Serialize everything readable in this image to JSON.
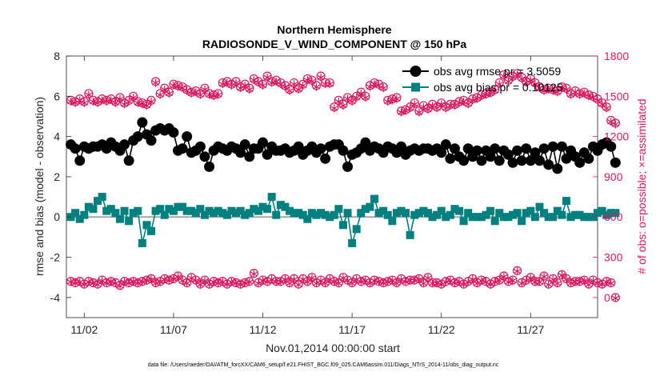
{
  "chart_data": {
    "type": "line",
    "title": "Northern Hemisphere",
    "subtitle": "RADIOSONDE_V_WIND_COMPONENT @ 150 hPa",
    "xlabel": "Nov.01,2014 00:00:00 start",
    "ylabel": "rmse and bias (model - observation)",
    "ylabel_right": "# of obs: o=possible; ×=assimilated",
    "x_tick_labels": [
      "11/02",
      "11/07",
      "11/12",
      "11/17",
      "11/22",
      "11/27"
    ],
    "x_tick_days": [
      1.5,
      6.5,
      11.5,
      16.5,
      21.5,
      26.5
    ],
    "xlim": [
      0.5,
      30.25
    ],
    "ylim": [
      -5,
      8
    ],
    "y_ticks": [
      -4,
      -2,
      0,
      2,
      4,
      6,
      8
    ],
    "ylim_right": [
      -150,
      1800
    ],
    "y_ticks_right": [
      0,
      300,
      600,
      900,
      1200,
      1500,
      1800
    ],
    "grid": false,
    "legend_position": "top-right",
    "footer": "data file: /Users/raeder/DAI/ATM_forcXX/CAM6_setup/f.e21.FHIST_BGC.f09_025.CAM6assim.011/Diags_NTrS_2014-11/obs_diag_output.nc",
    "colors": {
      "rmse": "#000000",
      "bias": "#00807f",
      "counts": "#d81b60",
      "zero_line": "#a6a6a6",
      "axes": "#262626"
    },
    "x_start_day": 0.75,
    "x_step_days": 0.25,
    "series": [
      {
        "name": "obs avg rmse pr = 3.5059",
        "axis": "left",
        "values": [
          3.6,
          3.4,
          2.8,
          3.5,
          3.4,
          3.5,
          3.5,
          3.6,
          3.4,
          3.7,
          3.5,
          3.3,
          3.6,
          2.8,
          3.8,
          4.0,
          4.7,
          4.1,
          3.8,
          4.3,
          4.4,
          4.3,
          4.4,
          4.2,
          3.3,
          3.4,
          4.0,
          3.2,
          3.3,
          3.5,
          3.0,
          2.5,
          3.3,
          3.5,
          3.4,
          3.3,
          3.5,
          3.4,
          3.2,
          3.6,
          3.0,
          3.4,
          3.4,
          3.7,
          3.1,
          3.5,
          3.3,
          3.3,
          3.4,
          3.2,
          3.3,
          3.5,
          3.1,
          3.3,
          3.5,
          3.2,
          3.4,
          2.9,
          3.5,
          3.6,
          3.6,
          3.3,
          2.5,
          3.1,
          3.2,
          3.4,
          3.7,
          3.3,
          3.5,
          3.4,
          3.2,
          3.5,
          3.4,
          3.2,
          3.5,
          3.1,
          3.3,
          3.4,
          3.3,
          3.4,
          3.4,
          3.3,
          3.4,
          3.2,
          3.6,
          2.9,
          3.4,
          3.0,
          2.8,
          3.4,
          3.0,
          3.3,
          2.8,
          3.3,
          3.0,
          3.4,
          2.8,
          3.3,
          3.1,
          2.7,
          3.3,
          2.8,
          3.4,
          2.8,
          3.2,
          2.8,
          3.4,
          2.6,
          3.5,
          2.4,
          3.5,
          2.9,
          3.3,
          3.0,
          2.7,
          3.2,
          2.9,
          3.5,
          3.3,
          3.6,
          3.7,
          3.5,
          2.7
        ],
        "markers": "filled-circle"
      },
      {
        "name": "obs avg bias pr = 0.10125",
        "axis": "left",
        "values": [
          0.0,
          0.2,
          -0.1,
          0.1,
          0.5,
          0.4,
          0.8,
          1.0,
          0.3,
          0.4,
          0.2,
          -0.1,
          0.3,
          -0.2,
          0.2,
          0.3,
          -1.3,
          -0.4,
          -0.7,
          0.3,
          0.4,
          0.1,
          0.4,
          0.3,
          0.5,
          0.5,
          0.3,
          0.3,
          0.2,
          0.4,
          0.1,
          0.3,
          0.2,
          0.3,
          0.2,
          0.1,
          0.3,
          0.2,
          0.3,
          0.1,
          0.2,
          0.4,
          0.3,
          0.5,
          0.4,
          1.0,
          0.1,
          0.6,
          0.5,
          0.3,
          0.2,
          0.2,
          0.1,
          -0.1,
          0.2,
          0.1,
          0.2,
          0.1,
          0.0,
          0.1,
          0.4,
          -0.4,
          0.2,
          -1.3,
          -0.6,
          0.2,
          0.4,
          0.5,
          0.9,
          0.2,
          0.3,
          0.1,
          -0.2,
          0.2,
          0.3,
          0.2,
          -0.9,
          0.1,
          0.2,
          0.3,
          0.2,
          0.0,
          0.1,
          0.3,
          0.0,
          0.1,
          0.4,
          0.3,
          -0.2,
          0.2,
          0.0,
          0.0,
          0.0,
          0.1,
          0.3,
          -0.2,
          0.2,
          0.0,
          0.0,
          0.1,
          0.2,
          -0.2,
          0.2,
          0.3,
          0.0,
          0.5,
          0.2,
          0.0,
          0.0,
          0.3,
          0.1,
          0.8,
          0.0,
          0.1,
          0.1,
          0.0,
          0.0,
          0.0,
          0.2,
          0.3,
          0.1,
          0.2,
          0.2
        ],
        "markers": "filled-square"
      },
      {
        "name": "possible",
        "axis": "right",
        "values": [
          1470,
          1460,
          1480,
          1460,
          1520,
          1470,
          1460,
          1480,
          1470,
          1480,
          1460,
          1490,
          1450,
          1470,
          1500,
          1460,
          1450,
          1440,
          1470,
          1610,
          1520,
          1560,
          1530,
          1590,
          1580,
          1570,
          1550,
          1530,
          1540,
          1520,
          1560,
          1520,
          1510,
          1520,
          1600,
          1610,
          1590,
          1610,
          1570,
          1590,
          1560,
          1630,
          1610,
          1590,
          1650,
          1610,
          1620,
          1600,
          1580,
          1550,
          1600,
          1560,
          1590,
          1630,
          1620,
          1580,
          1650,
          1600,
          1600,
          1420,
          1470,
          1440,
          1490,
          1470,
          1500,
          1530,
          1500,
          1580,
          1600,
          1590,
          1570,
          1470,
          1480,
          1490,
          1390,
          1400,
          1420,
          1450,
          1390,
          1430,
          1410,
          1440,
          1420,
          1450,
          1420,
          1440,
          1440,
          1460,
          1470,
          1450,
          1480,
          1490,
          1510,
          1520,
          1530,
          1550,
          1600,
          1660,
          1620,
          1650,
          1670,
          1640,
          1610,
          1630,
          1600,
          1570,
          1550,
          1560,
          1550,
          1540,
          1570,
          1560,
          1520,
          1540,
          1520,
          1530,
          1510,
          1500,
          1480,
          1450,
          1420,
          1320,
          1300
        ],
        "markers": "open-circle"
      },
      {
        "name": "assimilated",
        "axis": "right",
        "values": [
          1460,
          1450,
          1470,
          1450,
          1510,
          1460,
          1450,
          1470,
          1460,
          1470,
          1450,
          1480,
          1440,
          1460,
          1490,
          1450,
          1440,
          1430,
          1460,
          1600,
          1510,
          1550,
          1520,
          1580,
          1570,
          1560,
          1540,
          1520,
          1530,
          1510,
          1550,
          1510,
          1500,
          1510,
          1590,
          1600,
          1580,
          1600,
          1560,
          1580,
          1550,
          1620,
          1600,
          1580,
          1640,
          1600,
          1610,
          1590,
          1570,
          1540,
          1590,
          1550,
          1580,
          1620,
          1610,
          1570,
          1640,
          1590,
          1590,
          1410,
          1460,
          1430,
          1480,
          1460,
          1490,
          1520,
          1490,
          1570,
          1590,
          1580,
          1560,
          1460,
          1470,
          1480,
          1380,
          1390,
          1410,
          1440,
          1380,
          1420,
          1400,
          1430,
          1410,
          1440,
          1410,
          1430,
          1430,
          1450,
          1460,
          1440,
          1470,
          1480,
          1500,
          1510,
          1520,
          1540,
          1590,
          1650,
          1610,
          1640,
          1660,
          1630,
          1600,
          1620,
          1590,
          1560,
          1540,
          1550,
          1540,
          1530,
          1560,
          1550,
          1510,
          1530,
          1510,
          1520,
          1500,
          1490,
          1470,
          1440,
          1410,
          1310,
          1290
        ],
        "markers": "asterisk"
      },
      {
        "name": "possible-lower",
        "axis": "right",
        "values": [
          120,
          110,
          120,
          100,
          120,
          110,
          100,
          130,
          110,
          120,
          110,
          90,
          120,
          110,
          120,
          110,
          120,
          130,
          140,
          110,
          120,
          140,
          130,
          140,
          160,
          130,
          110,
          150,
          130,
          100,
          130,
          100,
          120,
          110,
          120,
          100,
          120,
          110,
          100,
          110,
          120,
          180,
          110,
          130,
          120,
          140,
          120,
          120,
          140,
          110,
          140,
          100,
          140,
          120,
          150,
          110,
          130,
          110,
          140,
          120,
          110,
          150,
          130,
          110,
          140,
          120,
          130,
          110,
          130,
          120,
          110,
          120,
          130,
          110,
          140,
          120,
          130,
          130,
          140,
          110,
          150,
          110,
          110,
          100,
          120,
          130,
          110,
          120,
          100,
          120,
          140,
          110,
          130,
          120,
          100,
          120,
          130,
          160,
          120,
          130,
          200,
          110,
          130,
          150,
          120,
          120,
          160,
          100,
          140,
          110,
          170,
          140,
          110,
          120,
          120,
          130,
          100,
          130,
          110,
          100,
          120,
          110,
          0
        ],
        "markers": "open-circle"
      },
      {
        "name": "assimilated-lower",
        "axis": "right",
        "values": [
          115,
          105,
          115,
          95,
          115,
          105,
          95,
          125,
          105,
          115,
          105,
          85,
          115,
          105,
          115,
          105,
          115,
          125,
          135,
          105,
          115,
          135,
          125,
          135,
          155,
          125,
          105,
          145,
          125,
          95,
          125,
          95,
          115,
          105,
          115,
          95,
          115,
          105,
          95,
          105,
          115,
          175,
          105,
          125,
          115,
          135,
          115,
          115,
          135,
          105,
          135,
          95,
          135,
          115,
          145,
          105,
          125,
          105,
          135,
          115,
          105,
          145,
          125,
          105,
          135,
          115,
          125,
          105,
          125,
          115,
          105,
          115,
          125,
          105,
          135,
          115,
          125,
          125,
          135,
          105,
          145,
          105,
          105,
          95,
          115,
          125,
          105,
          115,
          95,
          115,
          135,
          105,
          125,
          115,
          95,
          115,
          125,
          155,
          115,
          125,
          195,
          105,
          125,
          145,
          115,
          115,
          155,
          95,
          135,
          105,
          165,
          135,
          105,
          115,
          115,
          125,
          95,
          125,
          105,
          95,
          115,
          105,
          -5
        ],
        "markers": "asterisk"
      }
    ]
  }
}
